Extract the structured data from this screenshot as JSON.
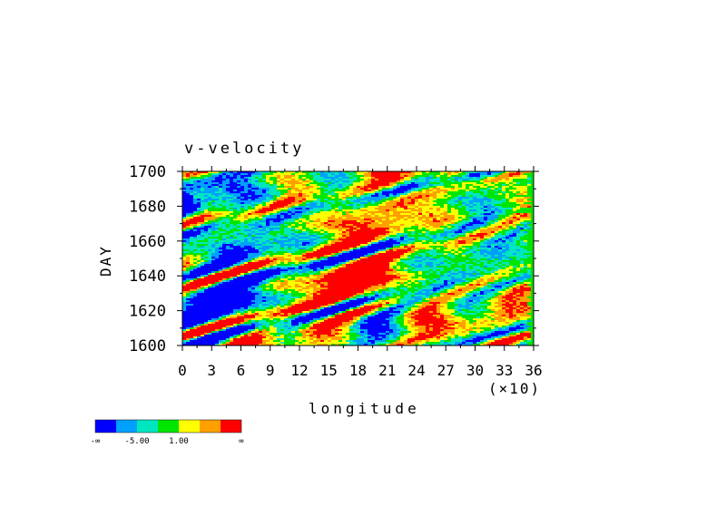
{
  "chart_data": {
    "type": "heatmap",
    "title": "v-velocity",
    "xlabel": "longitude",
    "ylabel": "DAY",
    "x_multiplier_label": "(×10)",
    "xlim": [
      0,
      36
    ],
    "ylim": [
      1600,
      1700
    ],
    "x_ticks": [
      0,
      3,
      6,
      9,
      12,
      15,
      18,
      21,
      24,
      27,
      30,
      33,
      36
    ],
    "y_ticks": [
      1600,
      1620,
      1640,
      1660,
      1680,
      1700
    ],
    "colorbar": {
      "colors": [
        "#0000ff",
        "#00a0ff",
        "#00e6c0",
        "#00e600",
        "#ffff00",
        "#ffa000",
        "#ff0000"
      ],
      "labels": [
        "-∞",
        "-5.00",
        "1.00",
        "∞"
      ]
    }
  }
}
